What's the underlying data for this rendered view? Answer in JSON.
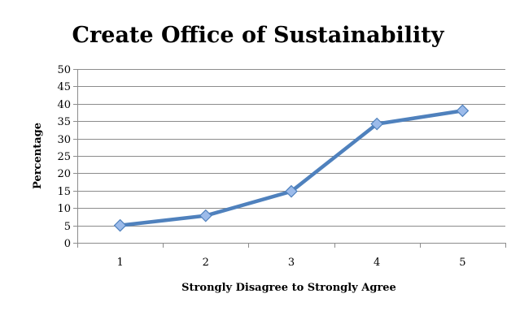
{
  "chart_data": {
    "type": "line",
    "title": "Create Office of Sustainability",
    "xlabel": "Strongly Disagree to Strongly Agree",
    "ylabel": "Percentage",
    "categories": [
      "1",
      "2",
      "3",
      "4",
      "5"
    ],
    "series": [
      {
        "values": [
          5,
          7.8,
          14.8,
          34.2,
          38
        ],
        "color": "#4f81bd",
        "marker": "diamond"
      }
    ],
    "ylim": [
      0,
      50
    ],
    "yticks": [
      "0",
      "5",
      "10",
      "15",
      "20",
      "25",
      "30",
      "35",
      "40",
      "45",
      "50"
    ],
    "grid": true,
    "legend": "none"
  },
  "colors": {
    "line": "#4f81bd",
    "marker_fill": "#9cbbea",
    "marker_stroke": "#4f81bd",
    "grid": "#8c8c8c",
    "axis": "#8c8c8c"
  }
}
